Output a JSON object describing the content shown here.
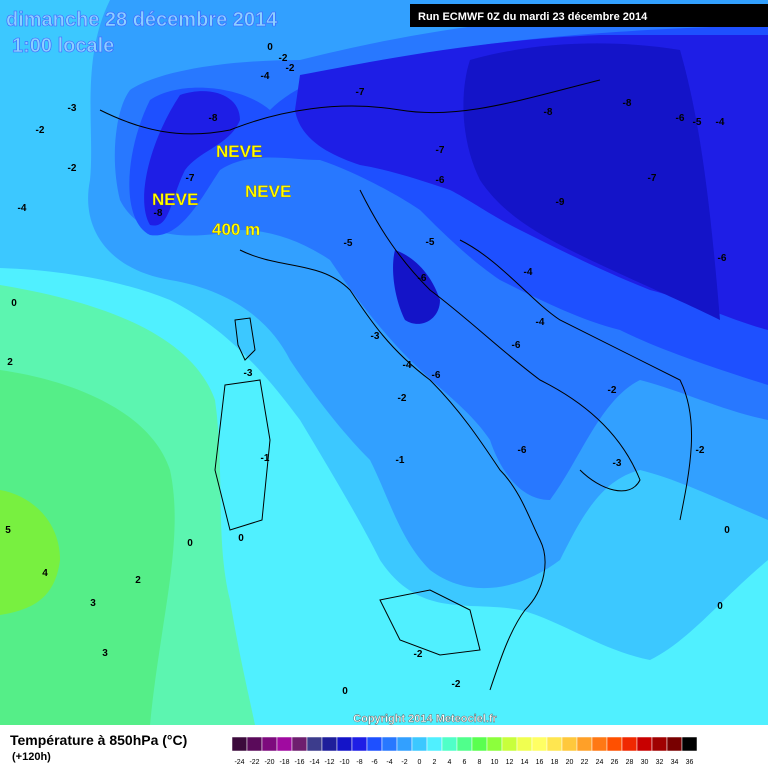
{
  "header": {
    "date": "dimanche 28 décembre 2014",
    "time": "1:00 locale",
    "run": "Run ECMWF 0Z du mardi 23 décembre 2014"
  },
  "annotations": [
    "NEVE",
    "NEVE",
    "NEVE",
    "400 m"
  ],
  "contour_labels": [
    -8,
    -7,
    -8,
    -3,
    -2,
    -2,
    -4,
    0,
    2,
    -7,
    -8,
    -8,
    -6,
    -4,
    -5,
    -7,
    -6,
    -7,
    -9,
    -6,
    -5,
    -5,
    -6,
    -4,
    -4,
    -6,
    -3,
    -4,
    -6,
    -3,
    -2,
    -2,
    -6,
    -1,
    -1,
    -3,
    -2,
    0,
    0,
    5,
    4,
    2,
    3,
    0,
    0,
    3,
    -2,
    -2,
    0,
    -4,
    -2,
    -2,
    0
  ],
  "copyright": "Copyright 2014 Meteociel.fr",
  "legend": {
    "title": "Température à 850hPa (°C)",
    "lead": "(+120h)",
    "ticks": [
      -24,
      -22,
      -20,
      -18,
      -16,
      -14,
      -12,
      -10,
      -8,
      -6,
      -4,
      -2,
      0,
      2,
      4,
      6,
      8,
      10,
      12,
      14,
      16,
      18,
      20,
      22,
      24,
      26,
      28,
      30,
      32,
      34,
      36
    ],
    "colors": [
      "#3c0a3c",
      "#5a0a5a",
      "#7d0a7d",
      "#a00aa0",
      "#6e1e6e",
      "#3c3c8c",
      "#1e1e9b",
      "#1414c8",
      "#1e1ee6",
      "#1e50ff",
      "#2878ff",
      "#32a0ff",
      "#3cc8ff",
      "#50f0ff",
      "#50ffc8",
      "#50ff8c",
      "#5aff50",
      "#8cff3c",
      "#c8ff3c",
      "#f0ff50",
      "#ffff64",
      "#ffe650",
      "#ffc83c",
      "#ffa028",
      "#ff7814",
      "#ff5000",
      "#f02800",
      "#c80000",
      "#a00000",
      "#780000",
      "#000000"
    ]
  }
}
